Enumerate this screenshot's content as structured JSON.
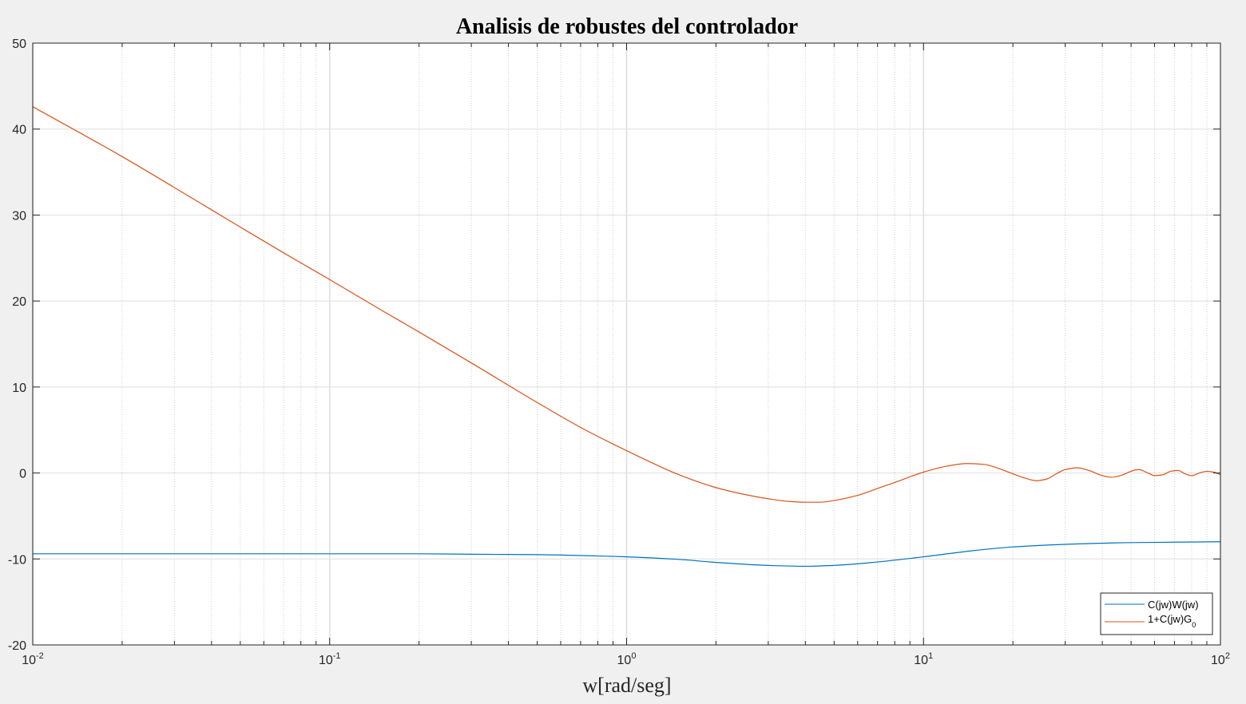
{
  "chart_data": {
    "type": "line",
    "title": "Analisis de robustes del controlador",
    "xlabel": "w[rad/seg]",
    "ylabel": "",
    "xscale": "log",
    "xlim": [
      0.01,
      100
    ],
    "ylim": [
      -20,
      50
    ],
    "xticks": [
      {
        "value": 0.01,
        "base": "10",
        "exp": "-2"
      },
      {
        "value": 0.1,
        "base": "10",
        "exp": "-1"
      },
      {
        "value": 1,
        "base": "10",
        "exp": "0"
      },
      {
        "value": 10,
        "base": "10",
        "exp": "1"
      },
      {
        "value": 100,
        "base": "10",
        "exp": "2"
      }
    ],
    "yticks": [
      {
        "value": -20,
        "label": "-20"
      },
      {
        "value": -10,
        "label": "-10"
      },
      {
        "value": 0,
        "label": "0"
      },
      {
        "value": 10,
        "label": "10"
      },
      {
        "value": 20,
        "label": "20"
      },
      {
        "value": 30,
        "label": "30"
      },
      {
        "value": 40,
        "label": "40"
      },
      {
        "value": 50,
        "label": "50"
      }
    ],
    "grid": true,
    "legend_position": "bottom-right",
    "series": [
      {
        "name": "C(jw)W(jw)",
        "color": "#0072BD",
        "x": [
          0.01,
          0.03,
          0.1,
          0.2,
          0.3,
          0.5,
          0.7,
          1,
          1.5,
          2,
          3,
          4,
          5,
          7,
          10,
          15,
          20,
          30,
          50,
          70,
          100
        ],
        "y": [
          -9.4,
          -9.4,
          -9.4,
          -9.4,
          -9.45,
          -9.5,
          -9.6,
          -9.75,
          -10.05,
          -10.4,
          -10.75,
          -10.85,
          -10.75,
          -10.35,
          -9.75,
          -9.0,
          -8.6,
          -8.3,
          -8.1,
          -8.05,
          -8.0
        ]
      },
      {
        "name": "1+C(jw)G",
        "name_subscript": "0",
        "color": "#D95319",
        "x": [
          0.01,
          0.02,
          0.03,
          0.05,
          0.07,
          0.1,
          0.15,
          0.2,
          0.3,
          0.5,
          0.7,
          1,
          1.5,
          2,
          2.5,
          3,
          3.5,
          4,
          4.5,
          5,
          6,
          7,
          8,
          10,
          12,
          14,
          16,
          18,
          20,
          22,
          24,
          26,
          28,
          30,
          33,
          36,
          40,
          43,
          47,
          50,
          53,
          57,
          60,
          64,
          68,
          72,
          76,
          80,
          85,
          90,
          95,
          100
        ],
        "y": [
          42.6,
          36.8,
          33.2,
          28.6,
          25.6,
          22.5,
          18.9,
          16.4,
          12.8,
          8.2,
          5.3,
          2.6,
          -0.2,
          -1.7,
          -2.5,
          -3.0,
          -3.3,
          -3.4,
          -3.4,
          -3.2,
          -2.6,
          -1.8,
          -1.1,
          0.1,
          0.8,
          1.1,
          1.0,
          0.5,
          -0.1,
          -0.6,
          -0.9,
          -0.7,
          -0.1,
          0.4,
          0.6,
          0.3,
          -0.3,
          -0.5,
          -0.2,
          0.2,
          0.4,
          0.0,
          -0.3,
          -0.2,
          0.2,
          0.3,
          -0.1,
          -0.3,
          0.0,
          0.2,
          0.1,
          -0.2
        ]
      }
    ]
  }
}
